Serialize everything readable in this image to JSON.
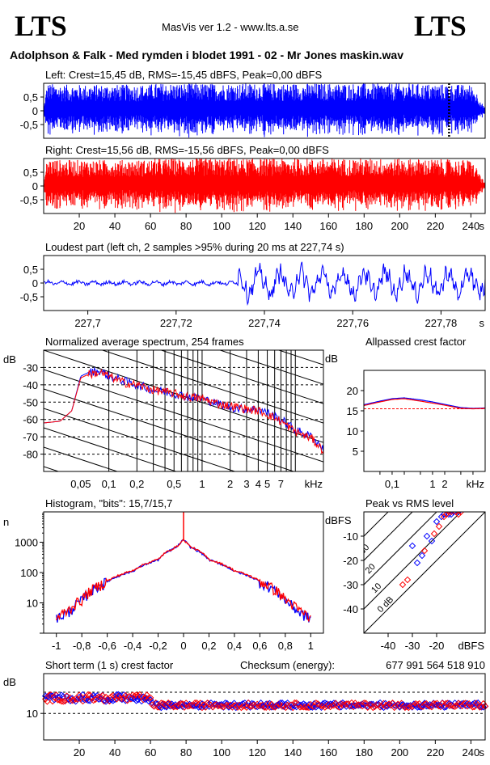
{
  "header": {
    "logo_left": "LTS",
    "logo_right": "LTS",
    "app_line": "MasVis ver 1.2 - www.lts.a.se",
    "track_title": "Adolphson & Falk - Med rymden i blodet 1991 - 02 - Mr Jones maskin.wav"
  },
  "colors": {
    "left": "#0000ff",
    "right": "#ff0000",
    "frame": "#000000"
  },
  "chart_data": [
    {
      "id": "left-waveform",
      "type": "area",
      "title": "Left: Crest=15,45 dB, RMS=-15,45 dBFS, Peak=0,00 dBFS",
      "ylim": [
        -1,
        1
      ],
      "yticks": [
        "0,5",
        "0",
        "-0,5"
      ],
      "xlim": [
        0,
        248
      ],
      "envelope": {
        "x": [
          0,
          2,
          10,
          30,
          60,
          61,
          120,
          200,
          240,
          244,
          246,
          248
        ],
        "peak": [
          0.1,
          1.0,
          0.95,
          0.95,
          0.95,
          1.0,
          1.0,
          1.0,
          0.95,
          0.6,
          0.3,
          0.1
        ]
      },
      "marker_x": 227.74
    },
    {
      "id": "right-waveform",
      "type": "area",
      "title": "Right: Crest=15,56 dB, RMS=-15,56 dBFS, Peak=0,00 dBFS",
      "ylim": [
        -1,
        1
      ],
      "yticks": [
        "0,5",
        "0",
        "-0,5"
      ],
      "xlim": [
        0,
        248
      ],
      "xticks": [
        "20",
        "40",
        "60",
        "80",
        "100",
        "120",
        "140",
        "160",
        "180",
        "200",
        "220",
        "240"
      ],
      "xunit": "s",
      "envelope": {
        "x": [
          0,
          2,
          10,
          30,
          60,
          61,
          120,
          200,
          240,
          244,
          246,
          248
        ],
        "peak": [
          0.1,
          1.0,
          0.95,
          0.95,
          0.95,
          1.0,
          1.0,
          1.0,
          0.95,
          0.6,
          0.3,
          0.1
        ]
      }
    },
    {
      "id": "loudest-part",
      "type": "line",
      "title": "Loudest part (left  ch, 2 samples >95% during 20 ms at 227,74 s)",
      "ylim": [
        -1,
        1
      ],
      "yticks": [
        "0,5",
        "0",
        "-0,5"
      ],
      "xlim": [
        227.69,
        227.79
      ],
      "xticks": [
        "227,7",
        "227,72",
        "227,74",
        "227,76",
        "227,78"
      ],
      "xunit": "s",
      "transition_x": 227.734
    },
    {
      "id": "average-spectrum",
      "type": "line",
      "title": "Normalized average spectrum, 254 frames",
      "ylabel": "dB",
      "ylim": [
        -90,
        -20
      ],
      "yticks": [
        "-30",
        "-40",
        "-50",
        "-60",
        "-70",
        "-80"
      ],
      "xlim": [
        0.02,
        20
      ],
      "xscale": "log",
      "xticks": [
        "0,05",
        "0,1",
        "0,2",
        "0,5",
        "1",
        "2",
        "3",
        "4",
        "5",
        "7"
      ],
      "xunit": "kHz",
      "x": [
        0.02,
        0.03,
        0.04,
        0.05,
        0.06,
        0.08,
        0.1,
        0.15,
        0.2,
        0.3,
        0.5,
        0.7,
        1,
        1.5,
        2,
        3,
        4,
        5,
        7,
        10,
        15,
        20
      ],
      "series": [
        {
          "values": [
            -62,
            -61,
            -55,
            -35,
            -33,
            -32,
            -35,
            -38,
            -40,
            -43,
            -45,
            -47,
            -48,
            -51,
            -53,
            -54,
            -54,
            -56,
            -60,
            -66,
            -70,
            -77
          ]
        },
        {
          "values": [
            -62,
            -61,
            -55,
            -36,
            -34,
            -33,
            -35,
            -39,
            -40,
            -43,
            -45,
            -47,
            -48,
            -51,
            -52,
            -54,
            -55,
            -57,
            -61,
            -67,
            -71,
            -78
          ]
        }
      ]
    },
    {
      "id": "allpassed-crest",
      "type": "line",
      "title": "Allpassed crest factor",
      "ylabel": "dB",
      "ylim": [
        0,
        25
      ],
      "yticks": [
        "20",
        "15",
        "10",
        "5"
      ],
      "xlim": [
        0.02,
        20
      ],
      "xscale": "log",
      "xticks": [
        "0,1",
        "1",
        "2"
      ],
      "xunit": "kHz",
      "reference_db": 15.5,
      "x": [
        0.02,
        0.05,
        0.1,
        0.2,
        0.5,
        1,
        2,
        5,
        10,
        20
      ],
      "series": [
        {
          "values": [
            16.5,
            17.4,
            18.0,
            18.2,
            17.7,
            17.2,
            16.6,
            15.8,
            15.6,
            15.7
          ]
        },
        {
          "values": [
            16.3,
            17.2,
            17.8,
            18.0,
            17.4,
            16.9,
            16.4,
            15.6,
            15.5,
            15.6
          ]
        }
      ]
    },
    {
      "id": "histogram",
      "type": "line",
      "title": "Histogram, \"bits\": 15,7/15,7",
      "ylabel": "n",
      "yscale": "log",
      "ylim": [
        1,
        10000
      ],
      "yticks": [
        "1000",
        "100",
        "10"
      ],
      "xlim": [
        -1.1,
        1.1
      ],
      "xticks": [
        "-1",
        "-0,8",
        "-0,6",
        "-0,4",
        "-0,2",
        "0",
        "0,2",
        "0,4",
        "0,6",
        "0,8",
        "1"
      ],
      "x": [
        -1,
        -0.9,
        -0.8,
        -0.7,
        -0.6,
        -0.4,
        -0.2,
        -0.05,
        0,
        0.05,
        0.2,
        0.4,
        0.6,
        0.7,
        0.8,
        0.9,
        1
      ],
      "series": [
        {
          "values": [
            3,
            5,
            12,
            30,
            50,
            110,
            260,
            700,
            1200,
            700,
            260,
            110,
            50,
            30,
            12,
            5,
            3
          ]
        },
        {
          "values": [
            3,
            6,
            13,
            31,
            52,
            115,
            270,
            720,
            1200,
            720,
            270,
            115,
            52,
            31,
            13,
            6,
            3
          ]
        }
      ]
    },
    {
      "id": "peak-vs-rms",
      "type": "scatter",
      "title": "Peak vs RMS level",
      "ylabel": "dBFS",
      "xlabel": "dBFS",
      "xlim": [
        -50,
        0
      ],
      "ylim": [
        -50,
        0
      ],
      "xticks": [
        "-40",
        "-30",
        "-20"
      ],
      "yticks": [
        "-10",
        "-20",
        "-30",
        "-40"
      ],
      "crest_lines": [
        "40",
        "30",
        "20",
        "10",
        "0 dB"
      ],
      "series": [
        {
          "points": [
            [
              -30,
              -14
            ],
            [
              -28,
              -21
            ],
            [
              -26,
              -18
            ],
            [
              -24,
              -10
            ],
            [
              -22,
              -12
            ],
            [
              -20,
              -4
            ],
            [
              -18,
              -2
            ],
            [
              -17,
              -1
            ],
            [
              -16,
              -1
            ],
            [
              -15,
              -1
            ],
            [
              -14,
              -1
            ],
            [
              -13,
              0
            ],
            [
              -12,
              0
            ],
            [
              -11,
              0
            ]
          ]
        },
        {
          "points": [
            [
              -34,
              -30
            ],
            [
              -32,
              -28
            ],
            [
              -25,
              -16
            ],
            [
              -21,
              -9
            ],
            [
              -19,
              -6
            ],
            [
              -17,
              -2
            ],
            [
              -16,
              -1
            ],
            [
              -15,
              0
            ],
            [
              -14,
              0
            ],
            [
              -12,
              0
            ],
            [
              -11,
              -1
            ],
            [
              -10,
              0
            ]
          ]
        }
      ]
    },
    {
      "id": "short-term-crest",
      "type": "scatter",
      "title": "Short term (1 s) crest factor",
      "checksum_label": "Checksum (energy):",
      "checksum_value": "677 991 564 518 910",
      "ylabel": "dB",
      "ylim": [
        0,
        25
      ],
      "yticks": [
        "10"
      ],
      "ref_lines": [
        10,
        18
      ],
      "xlim": [
        0,
        248
      ],
      "xticks": [
        "20",
        "40",
        "60",
        "80",
        "100",
        "120",
        "140",
        "160",
        "180",
        "200",
        "220",
        "240"
      ],
      "xunit": "s",
      "segments": [
        {
          "from": 0,
          "to": 60,
          "mean": 15.8,
          "jitter": 1.3
        },
        {
          "from": 60,
          "to": 248,
          "mean": 13.1,
          "jitter": 0.9
        }
      ]
    }
  ]
}
